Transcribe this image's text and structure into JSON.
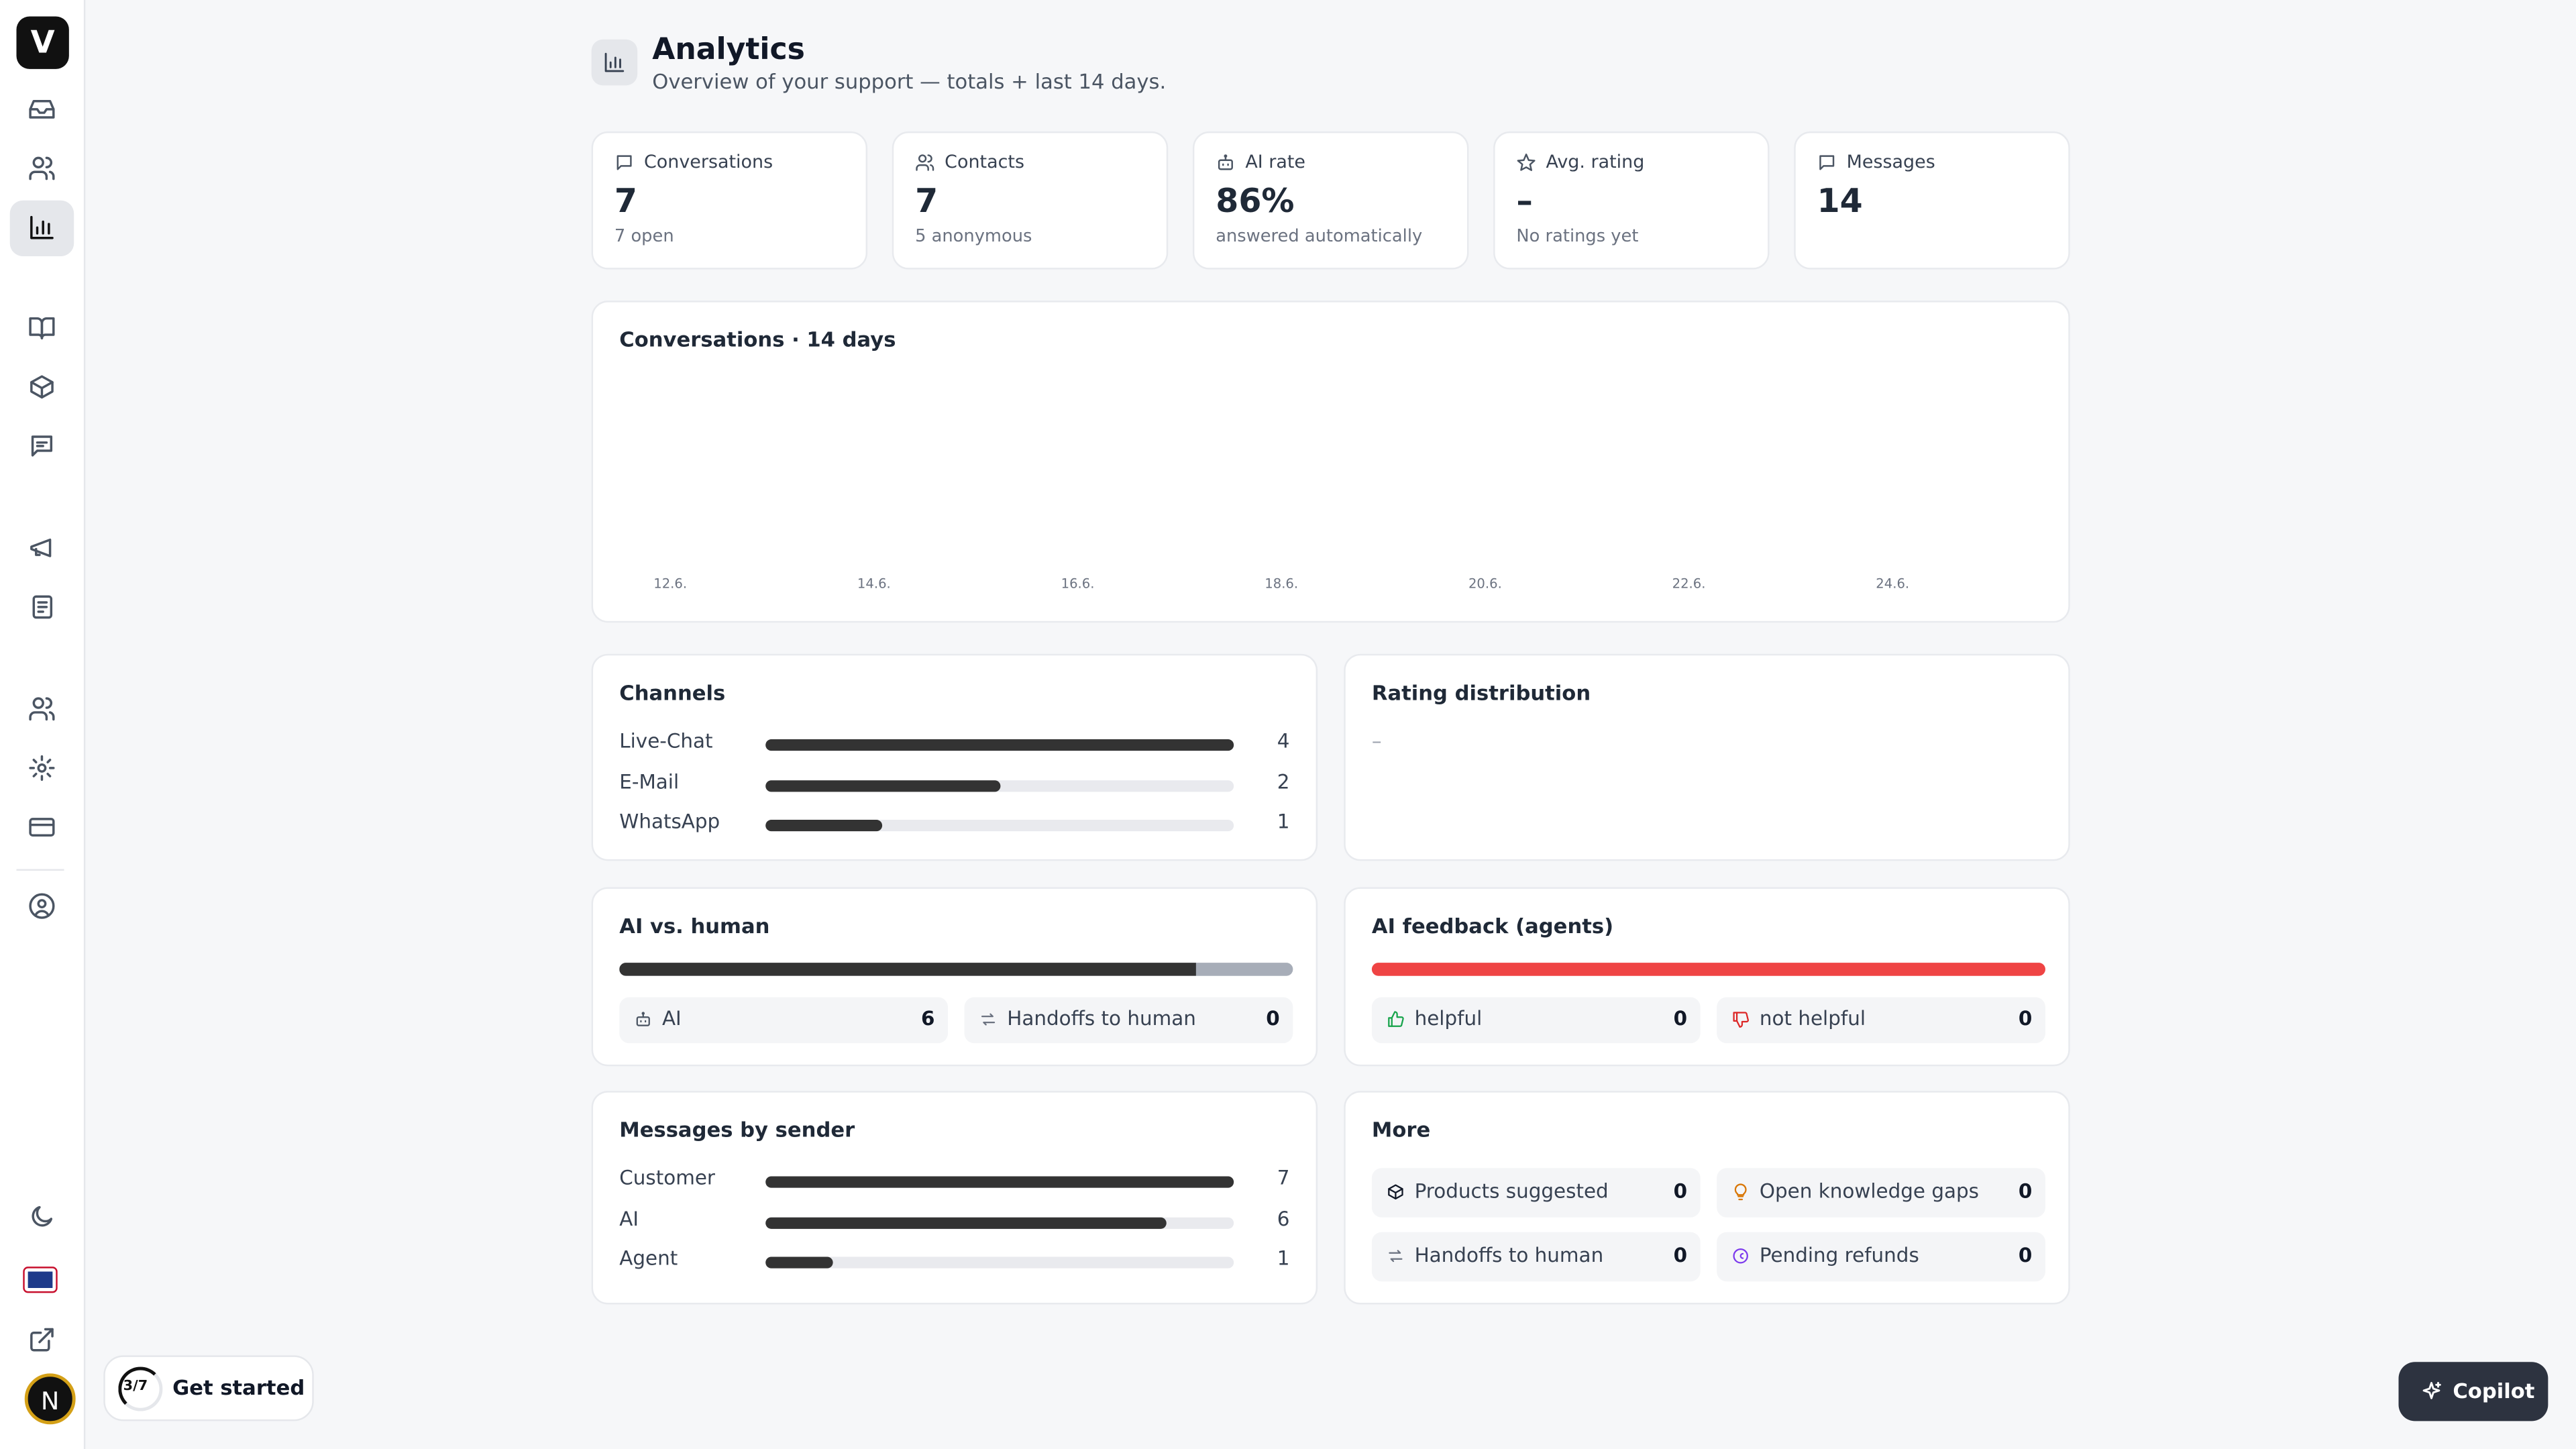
{
  "sidebar": {
    "logo": "V",
    "avatar": "N"
  },
  "header": {
    "title": "Analytics",
    "subtitle": "Overview of your support — totals + last 14 days."
  },
  "stats": [
    {
      "label": "Conversations",
      "value": 7,
      "note": "7 open"
    },
    {
      "label": "Contacts",
      "value": 7,
      "note": "5 anonymous"
    },
    {
      "label": "AI rate",
      "value": "86%",
      "note": "answered automatically"
    },
    {
      "label": "Avg. rating",
      "value": "–",
      "note": "No ratings yet"
    },
    {
      "label": "Messages",
      "value": 14
    }
  ],
  "conversations_chart": {
    "title": "Conversations · 14 days",
    "x_labels": [
      "12.6.",
      null,
      "14.6.",
      null,
      "16.6.",
      null,
      "18.6.",
      null,
      "20.6.",
      null,
      "22.6.",
      null,
      "24.6.",
      null
    ]
  },
  "channels": {
    "title": "Channels",
    "rows": [
      {
        "label": "Live-Chat",
        "value": 4
      },
      {
        "label": "E-Mail",
        "value": 2
      },
      {
        "label": "WhatsApp",
        "value": 1
      }
    ]
  },
  "rating_distribution": {
    "title": "Rating distribution",
    "empty": "–"
  },
  "ai_vs_human": {
    "title": "AI vs. human",
    "tiles": [
      {
        "label": "AI",
        "value": 6
      },
      {
        "label": "Handoffs to human",
        "value": 0
      }
    ]
  },
  "ai_feedback": {
    "title": "AI feedback (agents)",
    "tiles": [
      {
        "label": "helpful",
        "value": 0
      },
      {
        "label": "not helpful",
        "value": 0
      }
    ]
  },
  "messages_by_sender": {
    "title": "Messages by sender",
    "rows": [
      {
        "label": "Customer",
        "value": 7
      },
      {
        "label": "AI",
        "value": 6
      },
      {
        "label": "Agent",
        "value": 1
      }
    ]
  },
  "more": {
    "title": "More",
    "tiles": [
      {
        "label": "Products suggested",
        "value": 0
      },
      {
        "label": "Open knowledge gaps",
        "value": 0
      },
      {
        "label": "Handoffs to human",
        "value": 0
      },
      {
        "label": "Pending refunds",
        "value": 0
      }
    ]
  },
  "onboarding": {
    "progress": "3/7",
    "label": "Get started"
  },
  "copilot": {
    "label": "Copilot"
  }
}
